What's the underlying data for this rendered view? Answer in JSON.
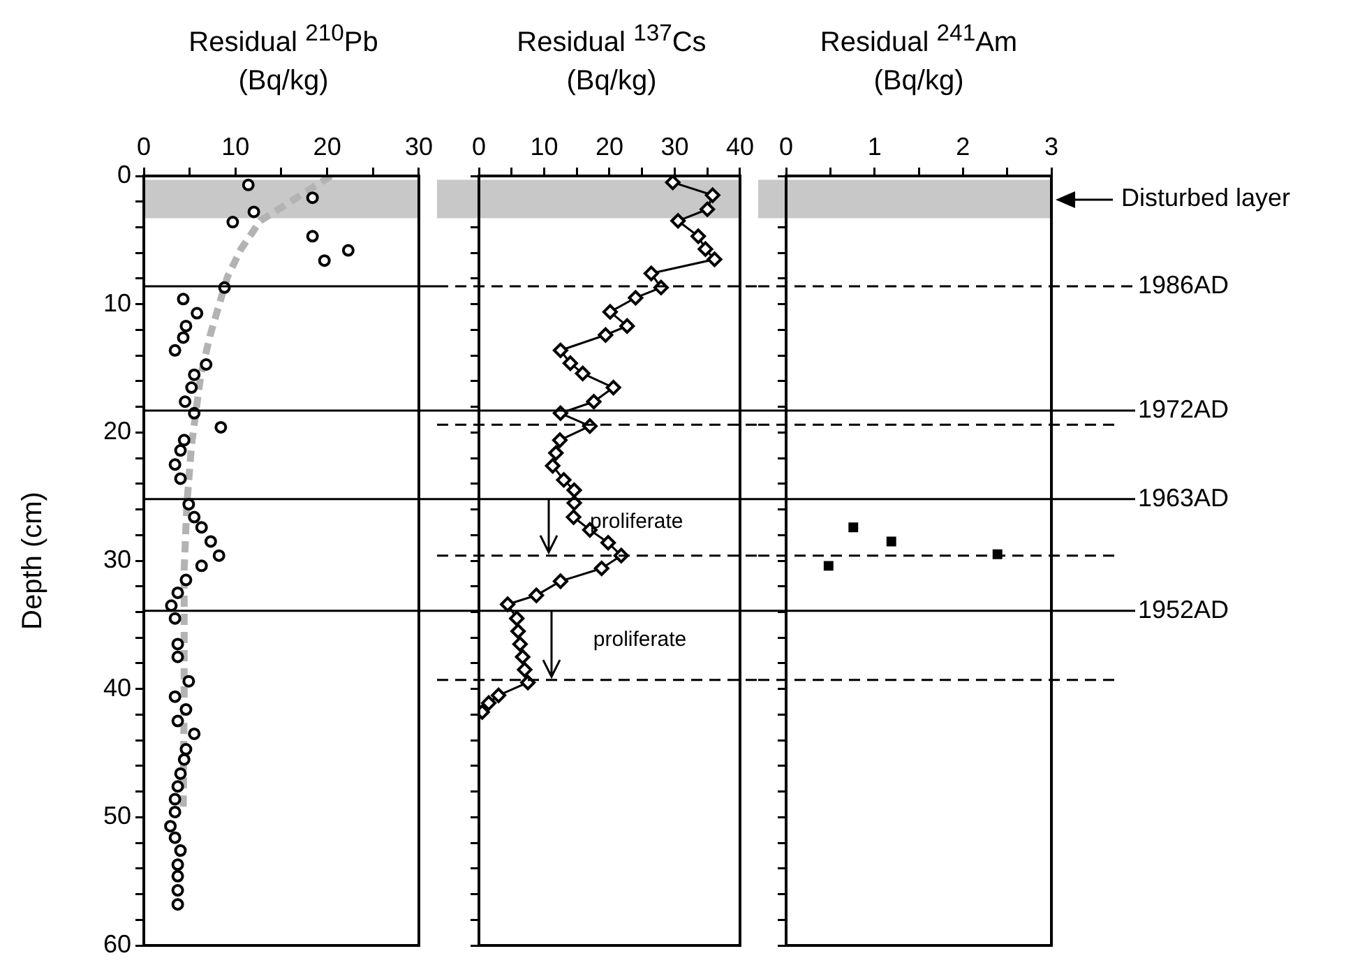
{
  "chart_data": [
    {
      "type": "scatter",
      "title": "Residual $^{210}$Pb",
      "xlabel": "(Bq/kg)",
      "ylabel": "Depth (cm)",
      "marker": "circle",
      "grid": false,
      "legend": false,
      "xlim": [
        0,
        30
      ],
      "xticks": [
        0,
        {
          "value": 5,
          "label": null
        },
        10,
        {
          "value": 15,
          "label": null
        },
        20,
        {
          "value": 25,
          "label": null
        },
        30
      ],
      "ylim": [
        60,
        0
      ],
      "yticks": [
        0,
        {
          "value": 2,
          "label": null
        },
        {
          "value": 4,
          "label": null
        },
        {
          "value": 6,
          "label": null
        },
        {
          "value": 8,
          "label": null
        },
        10,
        {
          "value": 12,
          "label": null
        },
        {
          "value": 14,
          "label": null
        },
        {
          "value": 16,
          "label": null
        },
        {
          "value": 18,
          "label": null
        },
        20,
        {
          "value": 22,
          "label": null
        },
        {
          "value": 24,
          "label": null
        },
        {
          "value": 26,
          "label": null
        },
        {
          "value": 28,
          "label": null
        },
        30,
        {
          "value": 32,
          "label": null
        },
        {
          "value": 34,
          "label": null
        },
        {
          "value": 36,
          "label": null
        },
        {
          "value": 38,
          "label": null
        },
        40,
        {
          "value": 42,
          "label": null
        },
        {
          "value": 44,
          "label": null
        },
        {
          "value": 46,
          "label": null
        },
        {
          "value": 48,
          "label": null
        },
        50,
        {
          "value": 52,
          "label": null
        },
        {
          "value": 54,
          "label": null
        },
        {
          "value": 56,
          "label": null
        },
        {
          "value": 58,
          "label": null
        },
        60
      ],
      "series": [
        {
          "color": "#000000",
          "x": [
            11.4,
            18.4,
            12.0,
            9.7,
            18.4,
            22.3,
            19.7,
            8.8,
            4.3,
            5.8,
            4.6,
            4.3,
            3.4,
            6.8,
            5.5,
            5.2,
            4.5,
            5.5,
            8.4,
            4.4,
            4.0,
            3.4,
            4.0,
            4.9,
            5.5,
            6.3,
            7.3,
            8.2,
            6.3,
            4.6,
            3.7,
            3.0,
            3.4,
            3.7,
            3.7,
            4.9,
            3.4,
            4.6,
            3.7,
            5.5,
            4.6,
            4.4,
            4.0,
            3.7,
            3.4,
            3.4,
            2.9,
            3.4,
            4.0,
            3.7,
            3.7,
            3.7,
            3.7
          ],
          "values": [
            0.7,
            1.7,
            2.8,
            3.6,
            4.7,
            5.8,
            6.6,
            8.7,
            9.6,
            10.7,
            11.7,
            12.6,
            13.6,
            14.7,
            15.5,
            16.5,
            17.6,
            18.5,
            19.6,
            20.6,
            21.4,
            22.5,
            23.6,
            25.6,
            26.6,
            27.4,
            28.5,
            29.6,
            30.4,
            31.5,
            32.5,
            33.5,
            34.5,
            36.5,
            37.5,
            39.4,
            40.6,
            41.6,
            42.5,
            43.5,
            44.7,
            45.5,
            46.6,
            47.6,
            48.6,
            49.6,
            50.7,
            51.6,
            52.6,
            53.7,
            54.6,
            55.7,
            56.8
          ]
        },
        {
          "type": "line",
          "color": "#b3b3b3",
          "line_style": "dashed",
          "marker": "none",
          "x": [
            20.4,
            12.7,
            10.6,
            9.1,
            7.2,
            6.2,
            5.2,
            4.7,
            4.4,
            4.4,
            4.3
          ],
          "values": [
            0,
            3.5,
            5.7,
            7.9,
            12.5,
            15.6,
            21,
            25.6,
            30.7,
            40,
            49.7
          ]
        }
      ],
      "bands": [
        {
          "axis": "y",
          "from": 0.3,
          "to": 3.3,
          "color": "#c8c8c8"
        }
      ],
      "ref_lines": [
        {
          "axis": "y",
          "value": 8.6,
          "line_style": "solid"
        },
        {
          "axis": "y",
          "value": 18.3,
          "line_style": "solid"
        },
        {
          "axis": "y",
          "value": 25.2,
          "line_style": "solid"
        },
        {
          "axis": "y",
          "value": 33.9,
          "line_style": "solid"
        }
      ]
    },
    {
      "type": "line",
      "title": "Residual $^{137}$Cs",
      "xlabel": "(Bq/kg)",
      "marker": "diamond",
      "line_style": "solid",
      "grid": false,
      "legend": false,
      "tick_labels": "x",
      "xlim": [
        0,
        40
      ],
      "xticks": [
        0,
        {
          "value": 5,
          "label": null
        },
        10,
        {
          "value": 15,
          "label": null
        },
        20,
        {
          "value": 25,
          "label": null
        },
        30,
        {
          "value": 35,
          "label": null
        },
        40
      ],
      "ylim": [
        60,
        0
      ],
      "yticks": [
        0,
        {
          "value": 2,
          "label": null
        },
        {
          "value": 4,
          "label": null
        },
        {
          "value": 6,
          "label": null
        },
        {
          "value": 8,
          "label": null
        },
        10,
        {
          "value": 12,
          "label": null
        },
        {
          "value": 14,
          "label": null
        },
        {
          "value": 16,
          "label": null
        },
        {
          "value": 18,
          "label": null
        },
        20,
        {
          "value": 22,
          "label": null
        },
        {
          "value": 24,
          "label": null
        },
        {
          "value": 26,
          "label": null
        },
        {
          "value": 28,
          "label": null
        },
        30,
        {
          "value": 32,
          "label": null
        },
        {
          "value": 34,
          "label": null
        },
        {
          "value": 36,
          "label": null
        },
        {
          "value": 38,
          "label": null
        },
        40,
        {
          "value": 42,
          "label": null
        },
        {
          "value": 44,
          "label": null
        },
        {
          "value": 46,
          "label": null
        },
        {
          "value": 48,
          "label": null
        },
        50,
        {
          "value": 52,
          "label": null
        },
        {
          "value": 54,
          "label": null
        },
        {
          "value": 56,
          "label": null
        },
        {
          "value": 58,
          "label": null
        },
        60
      ],
      "series": [
        {
          "color": "#000000",
          "x": [
            29.7,
            35.8,
            35.0,
            30.5,
            33.6,
            34.7,
            36.1,
            26.4,
            27.9,
            24.0,
            20.1,
            22.7,
            19.4,
            12.5,
            14.0,
            15.9,
            20.6,
            17.6,
            12.5,
            17.0,
            12.4,
            11.8,
            11.3,
            13.0,
            14.6,
            14.6,
            14.5,
            17.0,
            19.8,
            21.8,
            18.8,
            12.5,
            8.8,
            4.4,
            5.8,
            6.0,
            6.3,
            6.7,
            7.0,
            7.5,
            3.0,
            1.5,
            0.5
          ],
          "values": [
            0.5,
            1.5,
            2.6,
            3.5,
            4.7,
            5.7,
            6.5,
            7.6,
            8.7,
            9.5,
            10.6,
            11.7,
            12.4,
            13.6,
            14.6,
            15.4,
            16.5,
            17.6,
            18.5,
            19.5,
            20.6,
            21.6,
            22.6,
            23.7,
            24.5,
            25.5,
            26.6,
            27.6,
            28.6,
            29.6,
            30.6,
            31.6,
            32.7,
            33.4,
            34.5,
            35.5,
            36.5,
            37.5,
            38.5,
            39.5,
            40.5,
            41.1,
            41.8
          ]
        }
      ],
      "bands": [
        {
          "axis": "y",
          "from": 0.3,
          "to": 3.3,
          "color": "#c8c8c8"
        }
      ],
      "ref_lines": [
        {
          "axis": "y",
          "value": 8.6,
          "line_style": "dashed"
        },
        {
          "axis": "y",
          "value": 18.3,
          "line_style": "solid"
        },
        {
          "axis": "y",
          "value": 19.4,
          "line_style": "dashed"
        },
        {
          "axis": "y",
          "value": 25.2,
          "line_style": "solid"
        },
        {
          "axis": "y",
          "value": 29.6,
          "line_style": "dashed"
        },
        {
          "axis": "y",
          "value": 33.9,
          "line_style": "solid"
        },
        {
          "axis": "y",
          "value": 39.3,
          "line_style": "dashed"
        }
      ],
      "annotations": [
        {
          "text": "proliferate",
          "x": 10.6,
          "y": 29.6
        },
        {
          "text": "proliferate",
          "x": 11.1,
          "y": 39.3
        }
      ]
    },
    {
      "type": "scatter",
      "title": "Residual $^{241}$Am",
      "xlabel": "(Bq/kg)",
      "marker": "square",
      "grid": false,
      "legend": false,
      "tick_labels": "x",
      "xlim": [
        0,
        3
      ],
      "xticks": [
        0,
        {
          "value": 0.5,
          "label": null
        },
        1,
        {
          "value": 1.5,
          "label": null
        },
        2,
        {
          "value": 2.5,
          "label": null
        },
        3
      ],
      "ylim": [
        60,
        0
      ],
      "yticks": [
        0,
        {
          "value": 2,
          "label": null
        },
        {
          "value": 4,
          "label": null
        },
        {
          "value": 6,
          "label": null
        },
        {
          "value": 8,
          "label": null
        },
        10,
        {
          "value": 12,
          "label": null
        },
        {
          "value": 14,
          "label": null
        },
        {
          "value": 16,
          "label": null
        },
        {
          "value": 18,
          "label": null
        },
        20,
        {
          "value": 22,
          "label": null
        },
        {
          "value": 24,
          "label": null
        },
        {
          "value": 26,
          "label": null
        },
        {
          "value": 28,
          "label": null
        },
        30,
        {
          "value": 32,
          "label": null
        },
        {
          "value": 34,
          "label": null
        },
        {
          "value": 36,
          "label": null
        },
        {
          "value": 38,
          "label": null
        },
        40,
        {
          "value": 42,
          "label": null
        },
        {
          "value": 44,
          "label": null
        },
        {
          "value": 46,
          "label": null
        },
        {
          "value": 48,
          "label": null
        },
        50,
        {
          "value": 52,
          "label": null
        },
        {
          "value": 54,
          "label": null
        },
        {
          "value": 56,
          "label": null
        },
        {
          "value": 58,
          "label": null
        },
        60
      ],
      "series": [
        {
          "color": "#000000",
          "x": [
            0.76,
            1.19,
            2.39,
            0.48
          ],
          "values": [
            27.4,
            28.5,
            29.5,
            30.4
          ]
        }
      ],
      "bands": [
        {
          "axis": "y",
          "from": 0.3,
          "to": 3.3,
          "color": "#c8c8c8",
          "label": "Disturbed layer"
        }
      ],
      "ref_lines": [
        {
          "axis": "y",
          "value": 8.6,
          "line_style": "dashed",
          "label": "1986AD"
        },
        {
          "axis": "y",
          "value": 18.3,
          "line_style": "solid",
          "label": "1972AD"
        },
        {
          "axis": "y",
          "value": 19.4,
          "line_style": "dashed"
        },
        {
          "axis": "y",
          "value": 25.2,
          "line_style": "solid",
          "label": "1963AD"
        },
        {
          "axis": "y",
          "value": 29.6,
          "line_style": "dashed"
        },
        {
          "axis": "y",
          "value": 33.9,
          "line_style": "solid",
          "label": "1952AD"
        },
        {
          "axis": "y",
          "value": 39.3,
          "line_style": "dashed"
        }
      ]
    }
  ]
}
